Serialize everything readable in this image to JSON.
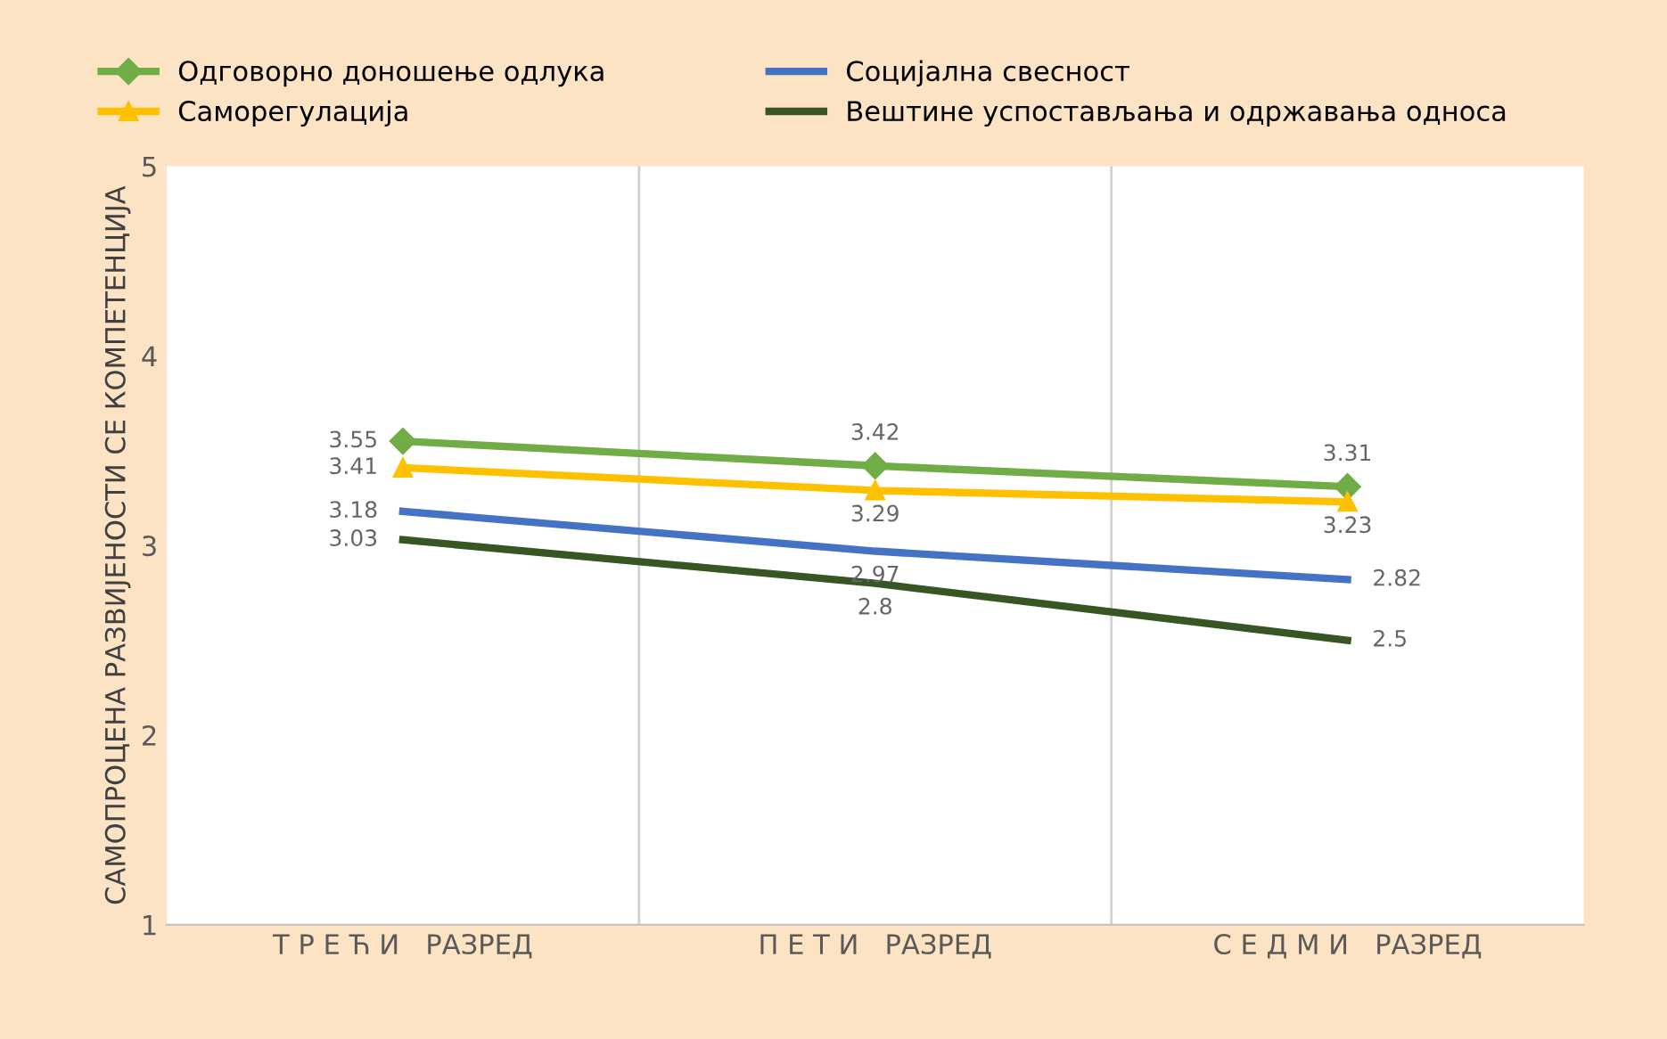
{
  "chart_data": {
    "type": "line",
    "ylabel": "САМОПРОЦЕНА РАЗВИЈЕНОСТИ СЕ КОМПЕТЕНЦИЈА",
    "categories": [
      "Т Р Е Ћ И   РАЗРЕД",
      "П Е Т И   РАЗРЕД",
      "С Е Д М И   РАЗРЕД"
    ],
    "series": [
      {
        "name": "Одговорно доношење одлука",
        "color": "#70ad47",
        "marker": "diamond",
        "values": [
          3.55,
          3.42,
          3.31
        ]
      },
      {
        "name": "Социјална свесност",
        "color": "#4472c4",
        "marker": "none",
        "values": [
          3.18,
          2.97,
          2.82
        ]
      },
      {
        "name": "Саморегулација",
        "color": "#ffc000",
        "marker": "triangle",
        "values": [
          3.41,
          3.29,
          3.23
        ]
      },
      {
        "name": "Вештине успостављања и одржавања односа",
        "color": "#375623",
        "marker": "none",
        "values": [
          3.03,
          2.8,
          2.5
        ]
      }
    ],
    "ylim": [
      1,
      5
    ],
    "yticks": [
      1,
      2,
      3,
      4,
      5
    ],
    "grid": "x",
    "legend": "top",
    "data_labels": true,
    "line_style": "solid"
  }
}
